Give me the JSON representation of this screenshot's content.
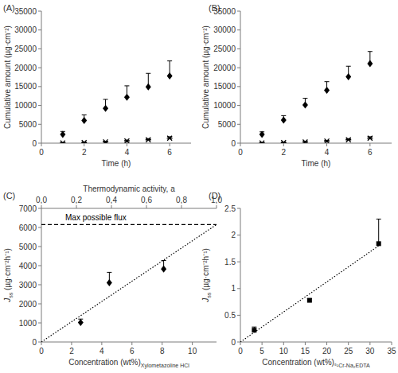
{
  "chart_data": [
    {
      "type": "scatter",
      "label": "(A)",
      "xlabel": "Time (h)",
      "ylabel": "Cumulative amount (µg·cm⁻²)",
      "xlim": [
        0,
        7
      ],
      "xticks": [
        0,
        2,
        4,
        6
      ],
      "ylim": [
        0,
        35000
      ],
      "yticks": [
        0,
        5000,
        10000,
        15000,
        20000,
        25000,
        30000,
        35000
      ],
      "x": [
        1,
        2,
        3,
        4,
        5,
        6
      ],
      "series": [
        {
          "color": "#000000",
          "marker": "diamond",
          "values": [
            2300,
            6000,
            9200,
            12200,
            14900,
            17800
          ],
          "errors": [
            800,
            1500,
            2400,
            3000,
            3600,
            4000
          ]
        },
        {
          "color": "#000000",
          "marker": "asterisk",
          "values": [
            50,
            150,
            350,
            600,
            900,
            1300
          ],
          "errors": [
            80,
            100,
            150,
            200,
            300,
            400
          ]
        }
      ]
    },
    {
      "type": "scatter",
      "label": "(B)",
      "xlabel": "Time (h)",
      "ylabel": "Cumulative amount (µg·cm⁻²)",
      "xlim": [
        0,
        7
      ],
      "xticks": [
        0,
        2,
        4,
        6
      ],
      "ylim": [
        0,
        35000
      ],
      "yticks": [
        0,
        5000,
        10000,
        15000,
        20000,
        25000,
        30000,
        35000
      ],
      "x": [
        1,
        2,
        3,
        4,
        5,
        6
      ],
      "series": [
        {
          "color": "#000000",
          "marker": "diamond",
          "values": [
            2300,
            6100,
            10100,
            14000,
            17600,
            21100
          ],
          "errors": [
            700,
            1200,
            1800,
            2300,
            2800,
            3200
          ]
        },
        {
          "color": "#000000",
          "marker": "asterisk",
          "values": [
            50,
            150,
            300,
            550,
            900,
            1300
          ],
          "errors": [
            80,
            100,
            150,
            200,
            300,
            400
          ]
        }
      ]
    },
    {
      "type": "scatter",
      "label": "(C)",
      "xlabel": "Concentration (wt%)",
      "xlabel_sub": "Xylometazoline HCl",
      "ylabel": "J",
      "ylabel_sub": "ss",
      "ylabel_unit": " (µg·cm⁻²h⁻¹)",
      "x2label": "Thermodynamic activity, a",
      "xlim": [
        0,
        11.6
      ],
      "xticks": [
        0,
        2,
        4,
        6,
        8,
        10
      ],
      "ylim": [
        0,
        7000
      ],
      "yticks": [
        0,
        1000,
        2000,
        3000,
        4000,
        5000,
        6000,
        7000
      ],
      "x2lim": [
        0,
        1
      ],
      "x2ticks": [
        {
          "value": 0,
          "label": "0,0"
        },
        {
          "value": 0.2,
          "label": "0,2"
        },
        {
          "value": 0.4,
          "label": "0,4"
        },
        {
          "value": 0.6,
          "label": "0,6"
        },
        {
          "value": 0.8,
          "label": "0,8"
        },
        {
          "value": 1,
          "label": "1,0"
        }
      ],
      "reference_line": {
        "value": 6150,
        "label": "Max possible flux",
        "line_style": "dashed"
      },
      "fit": {
        "x": [
          0,
          11.6
        ],
        "values": [
          0,
          6150
        ],
        "line_style": "dotted"
      },
      "series": [
        {
          "color": "#000000",
          "marker": "diamond",
          "x": [
            2.6,
            4.5,
            8.1
          ],
          "values": [
            1020,
            3100,
            3820
          ],
          "errors": [
            180,
            550,
            450
          ]
        }
      ]
    },
    {
      "type": "scatter",
      "label": "(D)",
      "xlabel": "Concentration (wt%)",
      "xlabel_sub": "⁵¹Cr-Na₂EDTA",
      "ylabel": "J",
      "ylabel_sub": "ss",
      "ylabel_unit": " (µg·cm⁻²h⁻¹)",
      "xlim": [
        0,
        35
      ],
      "xticks": [
        0,
        5,
        10,
        15,
        20,
        25,
        30,
        35
      ],
      "ylim": [
        0,
        2.5
      ],
      "yticks": [
        0,
        0.5,
        1,
        1.5,
        2,
        2.5
      ],
      "fit": {
        "x": [
          0,
          32
        ],
        "values": [
          0,
          1.8
        ],
        "line_style": "dotted"
      },
      "series": [
        {
          "color": "#000000",
          "marker": "square",
          "x": [
            3.2,
            16,
            32
          ],
          "values": [
            0.22,
            0.78,
            1.84
          ],
          "errors": [
            0.06,
            0.03,
            0.46
          ]
        }
      ]
    }
  ]
}
